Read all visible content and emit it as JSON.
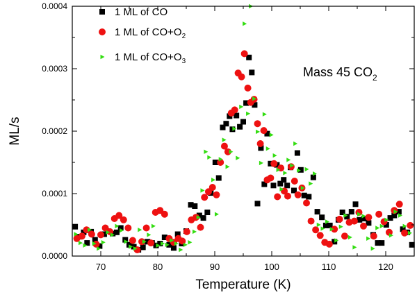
{
  "chart_data": {
    "type": "scatter",
    "title": "",
    "annotation": {
      "main": "Mass 45 CO",
      "subscript": "2"
    },
    "xlabel": "Temperature (K)",
    "ylabel": "ML/s",
    "xlim": [
      65,
      125
    ],
    "ylim": [
      0,
      0.0004
    ],
    "x_ticks": [
      70,
      80,
      90,
      100,
      110,
      120
    ],
    "x_tick_labels": [
      "70",
      "80",
      "90",
      "100",
      "110",
      "120"
    ],
    "y_ticks": [
      0,
      0.0001,
      0.0002,
      0.0003,
      0.0004
    ],
    "y_tick_labels": [
      "0.0000",
      "0.0001",
      "0.0002",
      "0.0003",
      "0.0004"
    ],
    "grid": false,
    "legend_position": "top-left",
    "series": [
      {
        "name": "1 ML of CO",
        "legend_main": "1 ML of CO",
        "legend_sub": "",
        "legend_tail": "",
        "marker": "square",
        "color": "#000000",
        "points": [
          [
            65.5,
            4.7e-05
          ],
          [
            66.2,
            3.1e-05
          ],
          [
            67.0,
            3.8e-05
          ],
          [
            67.6,
            2.1e-05
          ],
          [
            68.3,
            3.9e-05
          ],
          [
            69.0,
            2.6e-05
          ],
          [
            69.8,
            1.6e-05
          ],
          [
            70.6,
            3.5e-05
          ],
          [
            71.3,
            4e-05
          ],
          [
            72.1,
            3.6e-05
          ],
          [
            72.8,
            3.8e-05
          ],
          [
            73.5,
            4.5e-05
          ],
          [
            74.3,
            2.6e-05
          ],
          [
            75.0,
            1.8e-05
          ],
          [
            75.8,
            1.5e-05
          ],
          [
            76.6,
            1e-05
          ],
          [
            77.4,
            1.4e-05
          ],
          [
            78.2,
            2.3e-05
          ],
          [
            79.0,
            2.1e-05
          ],
          [
            79.7,
            1.7e-05
          ],
          [
            80.4,
            2e-05
          ],
          [
            81.2,
            3e-05
          ],
          [
            82.0,
            1.8e-05
          ],
          [
            82.8,
            1.3e-05
          ],
          [
            83.5,
            3.5e-05
          ],
          [
            84.2,
            2e-05
          ],
          [
            85.0,
            4e-05
          ],
          [
            85.8,
            8.2e-05
          ],
          [
            86.5,
            8e-05
          ],
          [
            87.3,
            6.5e-05
          ],
          [
            88.0,
            6.1e-05
          ],
          [
            88.7,
            7e-05
          ],
          [
            89.3,
            0.000101
          ],
          [
            90.1,
            0.00015
          ],
          [
            90.7,
            0.000125
          ],
          [
            91.4,
            0.000206
          ],
          [
            92.0,
            0.000212
          ],
          [
            92.6,
            0.000224
          ],
          [
            93.1,
            0.000203
          ],
          [
            93.8,
            0.000225
          ],
          [
            94.4,
            0.000207
          ],
          [
            95.0,
            0.000215
          ],
          [
            95.5,
            0.000245
          ],
          [
            96.0,
            0.000318
          ],
          [
            96.5,
            0.000294
          ],
          [
            97.0,
            0.000242
          ],
          [
            97.5,
            8.4e-05
          ],
          [
            98.1,
            0.000173
          ],
          [
            98.7,
            0.000115
          ],
          [
            99.2,
            0.000196
          ],
          [
            99.8,
            0.000148
          ],
          [
            100.3,
            0.000113
          ],
          [
            100.9,
            0.000146
          ],
          [
            101.5,
            0.000116
          ],
          [
            102.1,
            0.000122
          ],
          [
            102.7,
            0.000113
          ],
          [
            103.3,
            0.000142
          ],
          [
            103.9,
            0.000105
          ],
          [
            104.5,
            0.000165
          ],
          [
            105.1,
            0.000138
          ],
          [
            105.7,
            9.7e-05
          ],
          [
            106.5,
            9.5e-05
          ],
          [
            107.3,
            0.000126
          ],
          [
            108.0,
            7.1e-05
          ],
          [
            108.8,
            6.2e-05
          ],
          [
            109.5,
            4.9e-05
          ],
          [
            110.2,
            4.9e-05
          ],
          [
            111.0,
            2.3e-05
          ],
          [
            111.7,
            5.8e-05
          ],
          [
            112.4,
            7e-05
          ],
          [
            113.2,
            6.3e-05
          ],
          [
            114.0,
            7.1e-05
          ],
          [
            114.7,
            8.3e-05
          ],
          [
            115.4,
            5.8e-05
          ],
          [
            116.2,
            6e-05
          ],
          [
            117.0,
            5.3e-05
          ],
          [
            117.8,
            3.4e-05
          ],
          [
            118.6,
            2.1e-05
          ],
          [
            119.3,
            2.1e-05
          ],
          [
            120.1,
            5e-05
          ],
          [
            120.8,
            6.1e-05
          ],
          [
            121.5,
            6.5e-05
          ],
          [
            122.3,
            7.1e-05
          ],
          [
            123.0,
            4.3e-05
          ],
          [
            123.8,
            3.8e-05
          ],
          [
            124.6,
            1.8e-05
          ]
        ]
      },
      {
        "name": "1 ML of CO+O2",
        "legend_main": "1 ML of CO+O",
        "legend_sub": "2",
        "legend_tail": "",
        "marker": "circle",
        "color": "#ee1111",
        "points": [
          [
            65.8,
            2.8e-05
          ],
          [
            66.7,
            3.2e-05
          ],
          [
            67.5,
            4.2e-05
          ],
          [
            68.4,
            3.5e-05
          ],
          [
            69.2,
            1.9e-05
          ],
          [
            70.0,
            3.4e-05
          ],
          [
            70.8,
            4.5e-05
          ],
          [
            71.6,
            3.9e-05
          ],
          [
            72.4,
            6e-05
          ],
          [
            73.2,
            6.5e-05
          ],
          [
            74.0,
            5.8e-05
          ],
          [
            74.8,
            4.5e-05
          ],
          [
            75.6,
            2.5e-05
          ],
          [
            76.4,
            1e-05
          ],
          [
            77.2,
            2.3e-05
          ],
          [
            78.0,
            4.5e-05
          ],
          [
            78.8,
            2.1e-05
          ],
          [
            79.6,
            7e-05
          ],
          [
            80.4,
            7.3e-05
          ],
          [
            81.2,
            6.7e-05
          ],
          [
            82.0,
            2.8e-05
          ],
          [
            82.8,
            2.2e-05
          ],
          [
            83.6,
            2.8e-05
          ],
          [
            84.3,
            2.4e-05
          ],
          [
            85.1,
            3.9e-05
          ],
          [
            85.9,
            5.8e-05
          ],
          [
            86.7,
            6.2e-05
          ],
          [
            87.5,
            4.6e-05
          ],
          [
            88.2,
            9.4e-05
          ],
          [
            88.9,
            0.000103
          ],
          [
            89.6,
            0.00011
          ],
          [
            90.3,
            9.8e-05
          ],
          [
            91.0,
            0.00015
          ],
          [
            91.7,
            0.000176
          ],
          [
            92.3,
            0.000167
          ],
          [
            92.9,
            0.000229
          ],
          [
            93.5,
            0.000234
          ],
          [
            94.1,
            0.000293
          ],
          [
            94.7,
            0.000287
          ],
          [
            95.2,
            0.000324
          ],
          [
            95.8,
            0.000269
          ],
          [
            96.3,
            0.000246
          ],
          [
            96.9,
            0.000251
          ],
          [
            97.5,
            0.000212
          ],
          [
            98.0,
            0.00018
          ],
          [
            98.6,
            0.000201
          ],
          [
            99.2,
            0.000122
          ],
          [
            99.8,
            0.000125
          ],
          [
            100.4,
            0.000148
          ],
          [
            101.0,
            9.5e-05
          ],
          [
            101.6,
            0.000141
          ],
          [
            102.2,
            0.000104
          ],
          [
            102.8,
            9.6e-05
          ],
          [
            103.4,
            0.000143
          ],
          [
            104.0,
            0.00012
          ],
          [
            104.6,
            9.8e-05
          ],
          [
            105.3,
            0.000109
          ],
          [
            106.1,
            8.5e-05
          ],
          [
            106.9,
            5.6e-05
          ],
          [
            107.7,
            4.2e-05
          ],
          [
            108.5,
            3.3e-05
          ],
          [
            109.3,
            2.2e-05
          ],
          [
            110.1,
            1.9e-05
          ],
          [
            111.0,
            4.3e-05
          ],
          [
            111.9,
            5.9e-05
          ],
          [
            112.8,
            3.2e-05
          ],
          [
            113.6,
            5.4e-05
          ],
          [
            114.5,
            5.6e-05
          ],
          [
            115.3,
            7e-05
          ],
          [
            116.1,
            4.8e-05
          ],
          [
            117.0,
            6.2e-05
          ],
          [
            117.9,
            3.2e-05
          ],
          [
            118.8,
            6.7e-05
          ],
          [
            119.7,
            5.5e-05
          ],
          [
            120.6,
            3.8e-05
          ],
          [
            121.5,
            7.3e-05
          ],
          [
            122.4,
            8.3e-05
          ],
          [
            123.3,
            3.7e-05
          ],
          [
            124.3,
            4.9e-05
          ]
        ]
      },
      {
        "name": "1 ML of CO+O3",
        "legend_main": "1 ML of CO+O",
        "legend_sub": "3",
        "legend_tail": "",
        "marker": "triangle-right",
        "color": "#33dd11",
        "points": [
          [
            65.6,
            3.5e-05
          ],
          [
            66.4,
            2.1e-05
          ],
          [
            67.2,
            1.7e-05
          ],
          [
            68.0,
            4.2e-05
          ],
          [
            68.8,
            2e-05
          ],
          [
            69.6,
            1.2e-05
          ],
          [
            70.4,
            2.2e-05
          ],
          [
            71.2,
            3.8e-05
          ],
          [
            72.0,
            3.4e-05
          ],
          [
            72.8,
            4.8e-05
          ],
          [
            73.6,
            4.1e-05
          ],
          [
            74.4,
            2.3e-05
          ],
          [
            75.2,
            1.5e-05
          ],
          [
            76.0,
            1.2e-05
          ],
          [
            76.8,
            4.2e-05
          ],
          [
            77.6,
            2.3e-05
          ],
          [
            78.4,
            3.4e-05
          ],
          [
            79.2,
            4.8e-05
          ],
          [
            80.0,
            1.7e-05
          ],
          [
            80.8,
            2e-05
          ],
          [
            81.6,
            1.8e-05
          ],
          [
            82.4,
            2.5e-05
          ],
          [
            83.2,
            2e-05
          ],
          [
            84.0,
            1e-05
          ],
          [
            84.8,
            1.8e-05
          ],
          [
            85.6,
            2.2e-05
          ],
          [
            86.4,
            3.9e-05
          ],
          [
            87.1,
            6.2e-05
          ],
          [
            87.8,
            0.000105
          ],
          [
            88.4,
            0.000167
          ],
          [
            89.0,
            0.000158
          ],
          [
            89.7,
            0.000122
          ],
          [
            90.3,
            6.7e-05
          ],
          [
            91.0,
            0.000155
          ],
          [
            91.6,
            0.000186
          ],
          [
            92.2,
            0.000143
          ],
          [
            92.8,
            0.000167
          ],
          [
            93.4,
            0.000204
          ],
          [
            94.0,
            0.000157
          ],
          [
            94.6,
            0.000239
          ],
          [
            95.2,
            0.000372
          ],
          [
            95.8,
            0.000228
          ],
          [
            96.3,
            0.0004
          ],
          [
            96.9,
            0.000252
          ],
          [
            97.5,
            0.000199
          ],
          [
            98.1,
            0.000149
          ],
          [
            98.7,
            0.000227
          ],
          [
            99.3,
            0.000172
          ],
          [
            99.9,
            0.000194
          ],
          [
            100.5,
            0.000161
          ],
          [
            101.1,
            0.000138
          ],
          [
            101.7,
            0.000107
          ],
          [
            102.3,
            0.000133
          ],
          [
            102.9,
            0.000154
          ],
          [
            103.5,
            0.000145
          ],
          [
            104.1,
            0.00018
          ],
          [
            104.7,
            0.000137
          ],
          [
            105.4,
            0.000109
          ],
          [
            106.1,
            0.000139
          ],
          [
            106.8,
            0.000116
          ],
          [
            107.5,
            0.000132
          ],
          [
            108.2,
            5e-05
          ],
          [
            108.9,
            4.4e-05
          ],
          [
            109.7,
            5.5e-05
          ],
          [
            110.5,
            4.3e-05
          ],
          [
            111.3,
            2.5e-05
          ],
          [
            112.1,
            4.7e-05
          ],
          [
            112.9,
            6.5e-05
          ],
          [
            113.7,
            3e-05
          ],
          [
            114.5,
            1.4e-05
          ],
          [
            115.3,
            6.7e-05
          ],
          [
            116.1,
            6.4e-05
          ],
          [
            116.9,
            2.8e-05
          ],
          [
            117.7,
            1.2e-05
          ],
          [
            118.5,
            4.5e-05
          ],
          [
            119.3,
            4.8e-05
          ],
          [
            120.1,
            5.8e-05
          ],
          [
            120.9,
            3.3e-05
          ],
          [
            121.7,
            7.1e-05
          ],
          [
            122.5,
            6.5e-05
          ],
          [
            123.3,
            4.8e-05
          ],
          [
            124.2,
            3.7e-05
          ]
        ]
      }
    ]
  }
}
